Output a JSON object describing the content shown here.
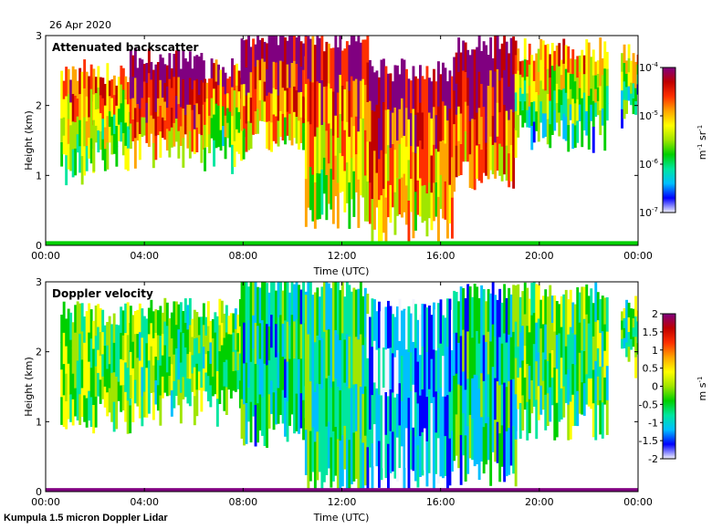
{
  "header": {
    "date": "26 Apr 2020"
  },
  "footer": {
    "instrument": "Kumpula 1.5 micron Doppler Lidar"
  },
  "chart_data": [
    {
      "type": "heatmap",
      "title": "Attenuated backscatter",
      "xlabel": "Time (UTC)",
      "ylabel": "Height (km)",
      "x_ticks": [
        "00:00",
        "04:00",
        "08:00",
        "12:00",
        "16:00",
        "20:00",
        "00:00"
      ],
      "y_ticks": [
        "0",
        "1",
        "2",
        "3"
      ],
      "xlim_hours": [
        0,
        24
      ],
      "ylim_km": [
        0,
        3
      ],
      "colorbar": {
        "scale": "log",
        "ticks": [
          "10-4",
          "10-5",
          "10-6",
          "10-7"
        ],
        "tick_mantissa": "10",
        "tick_exponents": [
          "-4",
          "-5",
          "-6",
          "-7"
        ],
        "unit_parts": [
          "m",
          "-1",
          " sr",
          "-1"
        ],
        "colors": [
          "#f4f4ff",
          "#0000ff",
          "#00bfff",
          "#00e6a0",
          "#00d000",
          "#a0e600",
          "#ffff00",
          "#ffa500",
          "#ff3000",
          "#c00000",
          "#800080"
        ]
      },
      "cloud_layers": [
        {
          "t_start": 0.6,
          "t_end": 1.9,
          "z_bottom": 1.1,
          "z_top": 2.5,
          "level": 0.55
        },
        {
          "t_start": 1.9,
          "t_end": 3.4,
          "z_bottom": 1.3,
          "z_top": 2.45,
          "level": 0.5
        },
        {
          "t_start": 3.4,
          "t_end": 6.4,
          "z_bottom": 1.35,
          "z_top": 2.65,
          "level": 0.8
        },
        {
          "t_start": 6.4,
          "t_end": 8.1,
          "z_bottom": 1.3,
          "z_top": 2.5,
          "level": 0.55
        },
        {
          "t_start": 7.9,
          "t_end": 10.5,
          "z_bottom": 1.6,
          "z_top": 3.0,
          "level": 0.75
        },
        {
          "t_start": 10.5,
          "t_end": 13.0,
          "z_bottom": 0.5,
          "z_top": 2.95,
          "level": 0.65
        },
        {
          "t_start": 13.0,
          "t_end": 16.5,
          "z_bottom": 0.3,
          "z_top": 2.5,
          "level": 0.7
        },
        {
          "t_start": 16.5,
          "t_end": 19.0,
          "z_bottom": 1.0,
          "z_top": 2.85,
          "level": 0.8
        },
        {
          "t_start": 19.0,
          "t_end": 22.7,
          "z_bottom": 1.6,
          "z_top": 2.8,
          "level": 0.45
        },
        {
          "t_start": 23.3,
          "t_end": 24.0,
          "z_bottom": 1.9,
          "z_top": 2.75,
          "level": 0.4
        }
      ],
      "surface_band": {
        "t_start": 0.0,
        "t_end": 24.0,
        "z_top": 0.06,
        "level": 0.35
      }
    },
    {
      "type": "heatmap",
      "title": "Doppler velocity",
      "xlabel": "Time (UTC)",
      "ylabel": "Height (km)",
      "x_ticks": [
        "00:00",
        "04:00",
        "08:00",
        "12:00",
        "16:00",
        "20:00",
        "00:00"
      ],
      "y_ticks": [
        "0",
        "1",
        "2",
        "3"
      ],
      "xlim_hours": [
        0,
        24
      ],
      "ylim_km": [
        0,
        3
      ],
      "colorbar": {
        "scale": "linear",
        "range": [
          -2,
          2
        ],
        "ticks": [
          "2",
          "1.5",
          "1",
          "0.5",
          "0",
          "-0.5",
          "-1",
          "-1.5",
          "-2"
        ],
        "unit_parts": [
          "m s",
          "-1"
        ],
        "colors": [
          "#f4f4ff",
          "#0000ff",
          "#00bfff",
          "#00e6a0",
          "#00d000",
          "#a0e600",
          "#ffff00",
          "#ffa500",
          "#ff3000",
          "#c00000",
          "#800080"
        ]
      },
      "cloud_layers": [
        {
          "t_start": 0.6,
          "t_end": 3.4,
          "z_bottom": 1.1,
          "z_top": 2.55,
          "level": 0.45
        },
        {
          "t_start": 3.4,
          "t_end": 8.1,
          "z_bottom": 1.2,
          "z_top": 2.6,
          "level": 0.42
        },
        {
          "t_start": 7.9,
          "t_end": 10.5,
          "z_bottom": 0.9,
          "z_top": 3.0,
          "level": 0.3
        },
        {
          "t_start": 10.5,
          "t_end": 13.0,
          "z_bottom": 0.1,
          "z_top": 2.95,
          "level": 0.35
        },
        {
          "t_start": 13.0,
          "t_end": 16.5,
          "z_bottom": 0.1,
          "z_top": 2.6,
          "level": 0.15
        },
        {
          "t_start": 16.5,
          "t_end": 19.0,
          "z_bottom": 0.3,
          "z_top": 2.85,
          "level": 0.3
        },
        {
          "t_start": 19.0,
          "t_end": 22.7,
          "z_bottom": 1.0,
          "z_top": 2.85,
          "level": 0.4
        },
        {
          "t_start": 23.3,
          "t_end": 24.0,
          "z_bottom": 1.9,
          "z_top": 2.75,
          "level": 0.4
        }
      ],
      "surface_band": {
        "t_start": 0.0,
        "t_end": 24.0,
        "z_top": 0.05,
        "level": 0.95
      }
    }
  ]
}
